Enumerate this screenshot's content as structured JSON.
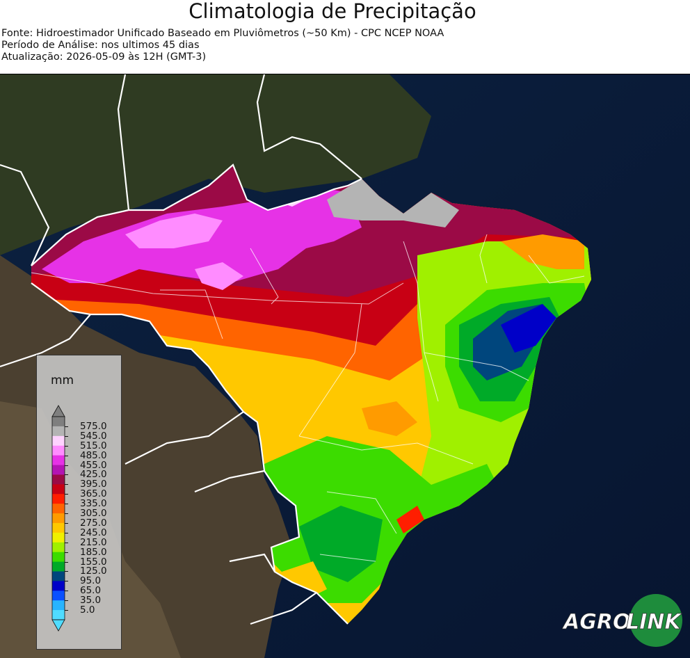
{
  "header": {
    "title": "Climatologia de Precipitação",
    "source": "Fonte: Hidroestimador Unificado Baseado em Pluviômetros (~50 Km) - CPC NCEP NOAA",
    "period": "Período de Análise: nos ultimos 45 dias",
    "updated": "Atualização: 2026-05-09 às 12H (GMT-3)"
  },
  "legend": {
    "unit": "mm",
    "ticks": [
      "575.0",
      "545.0",
      "515.0",
      "485.0",
      "455.0",
      "425.0",
      "395.0",
      "365.0",
      "335.0",
      "305.0",
      "275.0",
      "245.0",
      "215.0",
      "185.0",
      "155.0",
      "125.0",
      "95.0",
      "65.0",
      "35.0",
      "5.0"
    ],
    "colors": [
      "#7f7f7f",
      "#b4b4b4",
      "#ffd2ff",
      "#ff8cff",
      "#e632e6",
      "#b414b4",
      "#9b0a46",
      "#c80014",
      "#ff1e00",
      "#ff6400",
      "#ff9b00",
      "#ffc800",
      "#f0f000",
      "#a0f000",
      "#3cdc00",
      "#00aa28",
      "#00467d",
      "#0000c8",
      "#0a50ff",
      "#28b4ff",
      "#50dcff"
    ],
    "extend_top_color": "#7f7f7f",
    "extend_bottom_color": "#50dcff"
  },
  "logo": {
    "text_left": "AGRO",
    "text_right": "LINK",
    "circle_color": "#1e8c3c"
  }
}
